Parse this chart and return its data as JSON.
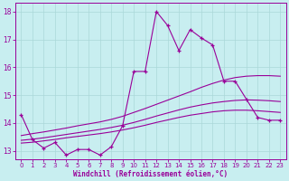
{
  "bg_color": "#c8eef0",
  "line_color": "#990099",
  "grid_color": "#aad8d8",
  "xlabel": "Windchill (Refroidissement éolien,°C)",
  "ylim": [
    12.7,
    18.3
  ],
  "xlim": [
    -0.5,
    23.5
  ],
  "yticks": [
    13,
    14,
    15,
    16,
    17,
    18
  ],
  "xticks": [
    0,
    1,
    2,
    3,
    4,
    5,
    6,
    7,
    8,
    9,
    10,
    11,
    12,
    13,
    14,
    15,
    16,
    17,
    18,
    19,
    20,
    21,
    22,
    23
  ],
  "main_line_y": [
    14.3,
    13.4,
    13.1,
    13.3,
    12.85,
    13.05,
    13.05,
    12.85,
    13.15,
    13.9,
    15.85,
    15.85,
    18.0,
    17.5,
    16.6,
    17.35,
    17.05,
    16.8,
    15.5,
    15.5,
    14.85,
    14.2,
    14.1,
    14.1
  ],
  "smooth1_y": [
    13.55,
    13.62,
    13.68,
    13.75,
    13.82,
    13.9,
    13.97,
    14.04,
    14.13,
    14.24,
    14.38,
    14.52,
    14.67,
    14.82,
    14.97,
    15.12,
    15.28,
    15.42,
    15.54,
    15.63,
    15.68,
    15.7,
    15.7,
    15.68
  ],
  "smooth2_y": [
    13.38,
    13.42,
    13.47,
    13.53,
    13.59,
    13.65,
    13.71,
    13.77,
    13.84,
    13.92,
    14.02,
    14.13,
    14.25,
    14.36,
    14.47,
    14.57,
    14.65,
    14.72,
    14.77,
    14.81,
    14.83,
    14.82,
    14.8,
    14.77
  ],
  "smooth3_y": [
    13.28,
    13.31,
    13.36,
    13.41,
    13.47,
    13.52,
    13.57,
    13.62,
    13.68,
    13.75,
    13.83,
    13.92,
    14.02,
    14.11,
    14.2,
    14.28,
    14.34,
    14.4,
    14.44,
    14.46,
    14.46,
    14.44,
    14.41,
    14.38
  ],
  "xtick_fontsize": 5.0,
  "ytick_fontsize": 5.5,
  "xlabel_fontsize": 5.5
}
